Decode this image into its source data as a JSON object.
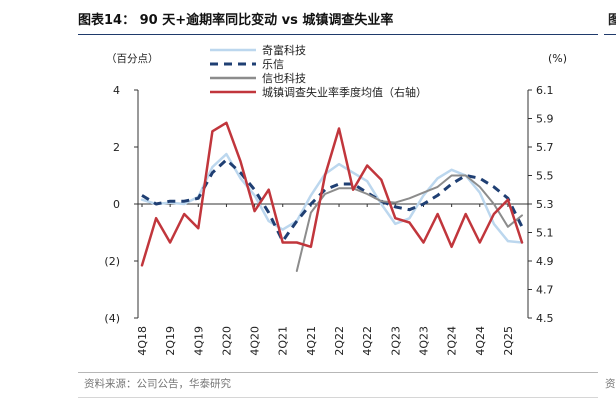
{
  "figure": {
    "title": "图表14： 90 天+逾期率同比变动  vs  城镇调查失业率",
    "source": "资料来源：公司公告，华泰研究",
    "right_stub_char": "图",
    "right_stub_source": "资"
  },
  "chart_data": {
    "type": "line",
    "left_unit": "（百分点）",
    "right_unit": "(%)",
    "left_ticks": [
      "4",
      "2",
      "0",
      "(2)",
      "(4)"
    ],
    "right_ticks": [
      "6.1",
      "5.9",
      "5.7",
      "5.5",
      "5.3",
      "5.1",
      "4.9",
      "4.7",
      "4.5"
    ],
    "ylim_left": [
      -4,
      4
    ],
    "ylim_right": [
      4.5,
      6.1
    ],
    "x_ticks": [
      "4Q18",
      "2Q19",
      "4Q19",
      "2Q20",
      "4Q20",
      "2Q21",
      "4Q21",
      "2Q22",
      "4Q22",
      "2Q23",
      "4Q23",
      "2Q24",
      "4Q24",
      "2Q25"
    ],
    "grid": false,
    "legend_position": "top-center",
    "series": [
      {
        "name": "奇富科技",
        "axis": "left",
        "color": "#bcd7ee",
        "style": "solid",
        "points": [
          [
            0,
            0.15
          ],
          [
            1,
            0.0
          ],
          [
            2,
            0.05
          ],
          [
            3,
            0.0
          ],
          [
            4,
            0.25
          ],
          [
            5,
            1.3
          ],
          [
            6,
            1.75
          ],
          [
            7,
            0.9
          ],
          [
            8,
            0.3
          ],
          [
            9,
            -0.6
          ],
          [
            10,
            -0.9
          ],
          [
            11,
            -0.6
          ],
          [
            12,
            0.3
          ],
          [
            13,
            1.05
          ],
          [
            14,
            1.4
          ],
          [
            15,
            1.1
          ],
          [
            16,
            0.8
          ],
          [
            17,
            0.0
          ],
          [
            18,
            -0.7
          ],
          [
            19,
            -0.5
          ],
          [
            20,
            0.3
          ],
          [
            21,
            0.9
          ],
          [
            22,
            1.2
          ],
          [
            23,
            1.0
          ],
          [
            24,
            0.4
          ],
          [
            25,
            -0.7
          ],
          [
            26,
            -1.3
          ],
          [
            27,
            -1.35
          ]
        ]
      },
      {
        "name": "乐信",
        "axis": "left",
        "color": "#1f3f73",
        "style": "dashed",
        "points": [
          [
            0,
            0.3
          ],
          [
            1,
            0.0
          ],
          [
            2,
            0.1
          ],
          [
            3,
            0.1
          ],
          [
            4,
            0.2
          ],
          [
            5,
            1.1
          ],
          [
            6,
            1.55
          ],
          [
            7,
            1.1
          ],
          [
            8,
            0.5
          ],
          [
            9,
            -0.3
          ],
          [
            10,
            -1.3
          ],
          [
            11,
            -0.6
          ],
          [
            12,
            0.0
          ],
          [
            13,
            0.5
          ],
          [
            14,
            0.7
          ],
          [
            15,
            0.7
          ],
          [
            16,
            0.4
          ],
          [
            17,
            0.1
          ],
          [
            18,
            -0.1
          ],
          [
            19,
            -0.2
          ],
          [
            20,
            0.0
          ],
          [
            21,
            0.3
          ],
          [
            22,
            0.7
          ],
          [
            23,
            1.0
          ],
          [
            24,
            0.9
          ],
          [
            25,
            0.6
          ],
          [
            26,
            0.2
          ],
          [
            27,
            -0.8
          ]
        ]
      },
      {
        "name": "信也科技",
        "axis": "left",
        "color": "#8c8c8c",
        "style": "solid",
        "points": [
          [
            11,
            -2.35
          ],
          [
            12,
            -0.3
          ],
          [
            13,
            0.35
          ],
          [
            14,
            0.55
          ],
          [
            15,
            0.55
          ],
          [
            16,
            0.35
          ],
          [
            17,
            0.1
          ],
          [
            18,
            0.05
          ],
          [
            19,
            0.2
          ],
          [
            20,
            0.4
          ],
          [
            21,
            0.6
          ],
          [
            22,
            1.0
          ],
          [
            23,
            1.0
          ],
          [
            24,
            0.6
          ],
          [
            25,
            0.0
          ],
          [
            26,
            -0.8
          ],
          [
            27,
            -0.4
          ]
        ]
      },
      {
        "name": "城镇调查失业率季度均值（右轴）",
        "axis": "right",
        "color": "#c1363c",
        "style": "solid",
        "points": [
          [
            0,
            4.87
          ],
          [
            1,
            5.2
          ],
          [
            2,
            5.03
          ],
          [
            3,
            5.23
          ],
          [
            4,
            5.13
          ],
          [
            5,
            5.81
          ],
          [
            6,
            5.87
          ],
          [
            7,
            5.6
          ],
          [
            8,
            5.25
          ],
          [
            9,
            5.4
          ],
          [
            10,
            5.03
          ],
          [
            11,
            5.03
          ],
          [
            12,
            5.0
          ],
          [
            13,
            5.5
          ],
          [
            14,
            5.83
          ],
          [
            15,
            5.4
          ],
          [
            16,
            5.57
          ],
          [
            17,
            5.47
          ],
          [
            18,
            5.2
          ],
          [
            19,
            5.17
          ],
          [
            20,
            5.03
          ],
          [
            21,
            5.23
          ],
          [
            22,
            5.0
          ],
          [
            23,
            5.23
          ],
          [
            24,
            5.03
          ],
          [
            25,
            5.23
          ],
          [
            26,
            5.33
          ],
          [
            27,
            5.03
          ]
        ]
      }
    ]
  }
}
